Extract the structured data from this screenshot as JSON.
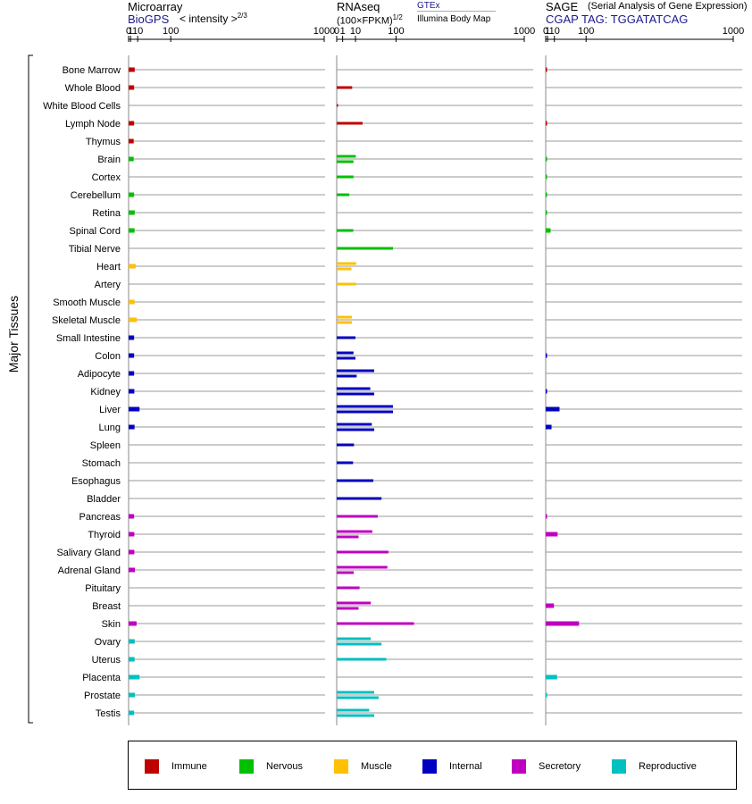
{
  "header": {
    "microarray_title": "Microarray",
    "microarray_source": "BioGPS",
    "microarray_scale": "< intensity >",
    "microarray_exponent": "2/3",
    "rnaseq_title": "RNAseq",
    "rnaseq_unit": "(100×FPKM)",
    "rnaseq_exponent": "1/2",
    "rnaseq_gtex": "GTEx",
    "rnaseq_illumina": "Illumina Body Map",
    "sage_title": "SAGE",
    "sage_subtitle": "(Serial Analysis of Gene Expression)",
    "sage_tag": "CGAP TAG: TGGATATCAG"
  },
  "axis_label": "Major Tissues",
  "colors": {
    "Immune": "#c00000",
    "Nervous": "#00c000",
    "Muscle": "#ffc000",
    "Internal": "#0000c0",
    "Secretory": "#c000c0",
    "Reproductive": "#00c0c0"
  },
  "legend": [
    "Immune",
    "Nervous",
    "Muscle",
    "Internal",
    "Secretory",
    "Reproductive"
  ],
  "chart_data": {
    "type": "bar",
    "orientation": "horizontal",
    "ticks": [
      0,
      1,
      10,
      100,
      1000
    ],
    "categories": [
      "Bone Marrow",
      "Whole Blood",
      "White Blood Cells",
      "Lymph Node",
      "Thymus",
      "Brain",
      "Cortex",
      "Cerebellum",
      "Retina",
      "Spinal Cord",
      "Tibial Nerve",
      "Heart",
      "Artery",
      "Smooth Muscle",
      "Skeletal Muscle",
      "Small Intestine",
      "Colon",
      "Adipocyte",
      "Kidney",
      "Liver",
      "Lung",
      "Spleen",
      "Stomach",
      "Esophagus",
      "Bladder",
      "Pancreas",
      "Thyroid",
      "Salivary Gland",
      "Adrenal Gland",
      "Pituitary",
      "Breast",
      "Skin",
      "Ovary",
      "Uterus",
      "Placenta",
      "Prostate",
      "Testis"
    ],
    "groups": [
      "Immune",
      "Immune",
      "Immune",
      "Immune",
      "Immune",
      "Nervous",
      "Nervous",
      "Nervous",
      "Nervous",
      "Nervous",
      "Nervous",
      "Muscle",
      "Muscle",
      "Muscle",
      "Muscle",
      "Internal",
      "Internal",
      "Internal",
      "Internal",
      "Internal",
      "Internal",
      "Internal",
      "Internal",
      "Internal",
      "Internal",
      "Secretory",
      "Secretory",
      "Secretory",
      "Secretory",
      "Secretory",
      "Secretory",
      "Secretory",
      "Reproductive",
      "Reproductive",
      "Reproductive",
      "Reproductive",
      "Reproductive"
    ],
    "series": [
      {
        "name": "Microarray (BioGPS)",
        "values": [
          5.5,
          4.7,
          null,
          4.7,
          4.2,
          4.2,
          null,
          4.7,
          5.5,
          5.3,
          null,
          6.8,
          null,
          5.3,
          8.6,
          4.7,
          4.7,
          4.7,
          5.0,
          13.2,
          5.3,
          null,
          null,
          null,
          null,
          4.7,
          5.0,
          5.0,
          5.8,
          null,
          null,
          8.2,
          5.5,
          5.3,
          13.2,
          5.8,
          4.7
        ]
      },
      {
        "name": "RNAseq GTEx",
        "values": [
          null,
          6.8,
          0.05,
          19,
          null,
          10.4,
          8.0,
          4.5,
          null,
          7.8,
          90,
          10.8,
          10.8,
          null,
          6.5,
          10.0,
          8.0,
          40,
          32,
          90,
          35,
          8.5,
          7.6,
          38,
          57,
          48,
          36,
          76,
          73,
          14.8,
          33,
          170,
          33,
          70,
          null,
          40,
          30
        ]
      },
      {
        "name": "RNAseq Illumina Body Map",
        "values": [
          null,
          null,
          null,
          null,
          null,
          8.0,
          null,
          null,
          null,
          null,
          null,
          6.2,
          null,
          null,
          6.5,
          null,
          10.0,
          11.3,
          40,
          90,
          40,
          null,
          null,
          null,
          null,
          null,
          13.6,
          null,
          8.2,
          null,
          13.6,
          null,
          57,
          null,
          null,
          50,
          40
        ]
      },
      {
        "name": "SAGE (CGAP)",
        "values": [
          0.05,
          null,
          null,
          0.05,
          null,
          0.03,
          0.03,
          0.03,
          0.03,
          4.2,
          null,
          null,
          null,
          null,
          null,
          null,
          0.05,
          null,
          0.05,
          20,
          5.5,
          null,
          null,
          null,
          null,
          0.05,
          16,
          null,
          null,
          null,
          9.2,
          75,
          null,
          null,
          15,
          0.03,
          null
        ]
      }
    ]
  }
}
